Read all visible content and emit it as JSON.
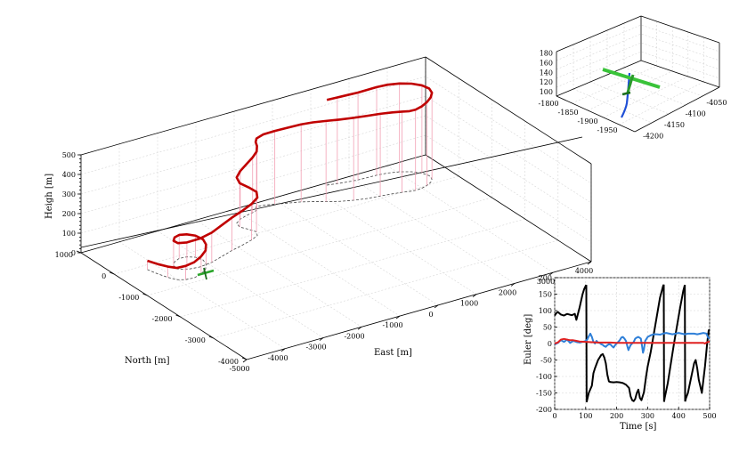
{
  "chart_data": [
    {
      "type": "line3d",
      "title": "",
      "xlabel": "East [m]",
      "ylabel": "North [m]",
      "zlabel": "Heigh [m]",
      "x_ticks": [
        "-5000",
        "-4000",
        "-3000",
        "-2000",
        "-1000",
        "0",
        "1000",
        "2000",
        "3000",
        "4000"
      ],
      "y_ticks": [
        "1000",
        "0",
        "-1000",
        "-2000",
        "-3000",
        "-4000"
      ],
      "z_ticks": [
        "0",
        "100",
        "200",
        "300",
        "400",
        "500"
      ],
      "xlim": [
        -5000,
        4000
      ],
      "ylim": [
        -4000,
        1000
      ],
      "zlim": [
        0,
        500
      ],
      "grid": true,
      "series": [
        {
          "name": "",
          "color": "#c00000",
          "shadow_color": "#444444",
          "stem_color": "#f2a0b4",
          "points": [
            [
              -4270,
              -160,
              45
            ],
            [
              -4200,
              -400,
              50
            ],
            [
              -4120,
              -600,
              55
            ],
            [
              -4020,
              -760,
              60
            ],
            [
              -3860,
              -840,
              70
            ],
            [
              -3650,
              -860,
              80
            ],
            [
              -3420,
              -800,
              90
            ],
            [
              -3200,
              -680,
              95
            ],
            [
              -3050,
              -520,
              100
            ],
            [
              -2990,
              -360,
              105
            ],
            [
              -3050,
              -200,
              110
            ],
            [
              -3200,
              -110,
              115
            ],
            [
              -3380,
              -90,
              120
            ],
            [
              -3560,
              -160,
              125
            ],
            [
              -3690,
              -280,
              128
            ],
            [
              -3700,
              -420,
              132
            ],
            [
              -3550,
              -520,
              138
            ],
            [
              -3250,
              -560,
              145
            ],
            [
              -2900,
              -520,
              152
            ],
            [
              -2550,
              -420,
              160
            ],
            [
              -2200,
              -320,
              168
            ],
            [
              -1850,
              -240,
              176
            ],
            [
              -1550,
              -160,
              184
            ],
            [
              -1320,
              -70,
              194
            ],
            [
              -1230,
              60,
              204
            ],
            [
              -1300,
              210,
              214
            ],
            [
              -1400,
              370,
              224
            ],
            [
              -1350,
              520,
              234
            ],
            [
              -1170,
              620,
              246
            ],
            [
              -960,
              680,
              262
            ],
            [
              -760,
              720,
              282
            ],
            [
              -620,
              760,
              300
            ],
            [
              -560,
              820,
              318
            ],
            [
              -560,
              860,
              334
            ],
            [
              -520,
              880,
              348
            ],
            [
              -360,
              860,
              362
            ],
            [
              -120,
              790,
              374
            ],
            [
              160,
              700,
              386
            ],
            [
              420,
              620,
              396
            ],
            [
              640,
              520,
              405
            ],
            [
              880,
              400,
              412
            ],
            [
              1140,
              280,
              418
            ],
            [
              1420,
              190,
              421
            ],
            [
              1720,
              120,
              422
            ],
            [
              2020,
              80,
              420
            ],
            [
              2300,
              40,
              416
            ],
            [
              2520,
              0,
              412
            ],
            [
              2680,
              -40,
              410
            ],
            [
              2820,
              -60,
              412
            ],
            [
              2990,
              -50,
              418
            ],
            [
              3160,
              -10,
              426
            ],
            [
              3320,
              60,
              434
            ],
            [
              3440,
              160,
              440
            ],
            [
              3480,
              290,
              445
            ],
            [
              3420,
              440,
              448
            ],
            [
              3270,
              580,
              450
            ],
            [
              3050,
              690,
              451
            ],
            [
              2800,
              760,
              451
            ],
            [
              2540,
              790,
              450
            ],
            [
              2300,
              800,
              448
            ],
            [
              2070,
              810,
              446
            ],
            [
              1830,
              840,
              444
            ],
            [
              1590,
              880,
              440
            ],
            [
              1360,
              930,
              435
            ]
          ]
        }
      ]
    },
    {
      "type": "line3d",
      "title": "",
      "x_ticks": [
        "-4200",
        "-4150",
        "-4100",
        "-4050"
      ],
      "y_ticks": [
        "-1800",
        "-1850",
        "-1900",
        "-1950"
      ],
      "z_ticks": [
        "100",
        "120",
        "140",
        "160",
        "180"
      ],
      "zlim": [
        100,
        180
      ],
      "grid": true
    },
    {
      "type": "line",
      "title": "",
      "xlabel": "Time [s]",
      "ylabel": "Euler [deg]",
      "xlim": [
        0,
        500
      ],
      "ylim": [
        -200,
        200
      ],
      "x_ticks": [
        "0",
        "100",
        "200",
        "300",
        "400",
        "500"
      ],
      "y_ticks": [
        "200",
        "150",
        "100",
        "50",
        "0",
        "-50",
        "-100",
        "-150",
        "-200"
      ],
      "grid": true,
      "series": [
        {
          "name": "",
          "color": "#000000",
          "points": [
            [
              0,
              85
            ],
            [
              5,
              92
            ],
            [
              10,
              96
            ],
            [
              20,
              88
            ],
            [
              30,
              85
            ],
            [
              40,
              90
            ],
            [
              55,
              86
            ],
            [
              65,
              90
            ],
            [
              70,
              72
            ],
            [
              80,
              108
            ],
            [
              90,
              150
            ],
            [
              95,
              165
            ],
            [
              100,
              175
            ],
            [
              102,
              178
            ],
            [
              103,
              -178
            ],
            [
              105,
              -170
            ],
            [
              110,
              -150
            ],
            [
              120,
              -128
            ],
            [
              125,
              -90
            ],
            [
              130,
              -75
            ],
            [
              140,
              -50
            ],
            [
              150,
              -35
            ],
            [
              155,
              -32
            ],
            [
              160,
              -42
            ],
            [
              165,
              -60
            ],
            [
              170,
              -95
            ],
            [
              175,
              -115
            ],
            [
              180,
              -117
            ],
            [
              190,
              -118
            ],
            [
              200,
              -117
            ],
            [
              210,
              -118
            ],
            [
              220,
              -120
            ],
            [
              230,
              -125
            ],
            [
              240,
              -135
            ],
            [
              245,
              -160
            ],
            [
              250,
              -172
            ],
            [
              255,
              -175
            ],
            [
              260,
              -168
            ],
            [
              265,
              -150
            ],
            [
              270,
              -140
            ],
            [
              275,
              -165
            ],
            [
              280,
              -172
            ],
            [
              288,
              -148
            ],
            [
              295,
              -100
            ],
            [
              300,
              -70
            ],
            [
              310,
              -25
            ],
            [
              320,
              30
            ],
            [
              330,
              85
            ],
            [
              340,
              140
            ],
            [
              350,
              175
            ],
            [
              352,
              179
            ],
            [
              353,
              -177
            ],
            [
              355,
              -165
            ],
            [
              365,
              -120
            ],
            [
              375,
              -60
            ],
            [
              385,
              0
            ],
            [
              395,
              55
            ],
            [
              405,
              110
            ],
            [
              415,
              160
            ],
            [
              420,
              178
            ],
            [
              421,
              -176
            ],
            [
              424,
              -165
            ],
            [
              430,
              -150
            ],
            [
              440,
              -105
            ],
            [
              450,
              -60
            ],
            [
              455,
              -50
            ],
            [
              460,
              -75
            ],
            [
              465,
              -110
            ],
            [
              475,
              -150
            ],
            [
              485,
              -70
            ],
            [
              492,
              0
            ],
            [
              497,
              40
            ],
            [
              500,
              42
            ]
          ]
        },
        {
          "name": "",
          "color": "#2e7fd8",
          "points": [
            [
              0,
              -3
            ],
            [
              10,
              2
            ],
            [
              20,
              10
            ],
            [
              30,
              5
            ],
            [
              40,
              12
            ],
            [
              50,
              2
            ],
            [
              60,
              8
            ],
            [
              70,
              5
            ],
            [
              80,
              3
            ],
            [
              90,
              5
            ],
            [
              95,
              6
            ],
            [
              100,
              8
            ],
            [
              105,
              12
            ],
            [
              110,
              22
            ],
            [
              115,
              30
            ],
            [
              120,
              20
            ],
            [
              125,
              5
            ],
            [
              130,
              0
            ],
            [
              135,
              8
            ],
            [
              140,
              3
            ],
            [
              145,
              2
            ],
            [
              150,
              -2
            ],
            [
              155,
              -4
            ],
            [
              160,
              -8
            ],
            [
              165,
              -10
            ],
            [
              170,
              -5
            ],
            [
              175,
              -2
            ],
            [
              180,
              -3
            ],
            [
              185,
              -8
            ],
            [
              190,
              -12
            ],
            [
              195,
              -5
            ],
            [
              200,
              0
            ],
            [
              205,
              5
            ],
            [
              210,
              10
            ],
            [
              215,
              18
            ],
            [
              220,
              20
            ],
            [
              225,
              15
            ],
            [
              230,
              8
            ],
            [
              235,
              -10
            ],
            [
              238,
              -20
            ],
            [
              240,
              -15
            ],
            [
              245,
              -5
            ],
            [
              250,
              0
            ],
            [
              255,
              5
            ],
            [
              260,
              15
            ],
            [
              265,
              18
            ],
            [
              270,
              20
            ],
            [
              278,
              15
            ],
            [
              282,
              -8
            ],
            [
              285,
              -28
            ],
            [
              288,
              -18
            ],
            [
              292,
              8
            ],
            [
              300,
              20
            ],
            [
              310,
              25
            ],
            [
              320,
              28
            ],
            [
              330,
              28
            ],
            [
              340,
              27
            ],
            [
              350,
              30
            ],
            [
              360,
              32
            ],
            [
              370,
              30
            ],
            [
              380,
              28
            ],
            [
              390,
              30
            ],
            [
              400,
              32
            ],
            [
              410,
              30
            ],
            [
              420,
              28
            ],
            [
              430,
              30
            ],
            [
              440,
              30
            ],
            [
              450,
              30
            ],
            [
              460,
              28
            ],
            [
              470,
              30
            ],
            [
              480,
              32
            ],
            [
              490,
              30
            ],
            [
              495,
              18
            ],
            [
              500,
              15
            ]
          ]
        },
        {
          "name": "",
          "color": "#e02020",
          "points": [
            [
              0,
              0
            ],
            [
              10,
              3
            ],
            [
              20,
              12
            ],
            [
              30,
              14
            ],
            [
              40,
              12
            ],
            [
              50,
              10
            ],
            [
              60,
              10
            ],
            [
              70,
              8
            ],
            [
              80,
              6
            ],
            [
              100,
              5
            ],
            [
              120,
              4
            ],
            [
              140,
              3
            ],
            [
              160,
              3
            ],
            [
              180,
              3
            ],
            [
              200,
              2
            ],
            [
              220,
              2
            ],
            [
              240,
              2
            ],
            [
              260,
              2
            ],
            [
              280,
              2
            ],
            [
              300,
              2
            ],
            [
              320,
              2
            ],
            [
              340,
              2
            ],
            [
              360,
              2
            ],
            [
              380,
              2
            ],
            [
              400,
              2
            ],
            [
              420,
              2
            ],
            [
              440,
              2
            ],
            [
              460,
              2
            ],
            [
              480,
              2
            ],
            [
              485,
              0
            ],
            [
              490,
              3
            ],
            [
              495,
              5
            ],
            [
              500,
              5
            ]
          ]
        }
      ]
    }
  ],
  "main_plot": {
    "x_label": "East [m]",
    "y_label": "North [m]",
    "z_label": "Heigh [m]"
  },
  "inset_plot": {
    "x_label": "Time [s]",
    "y_label": "Euler [deg]"
  }
}
